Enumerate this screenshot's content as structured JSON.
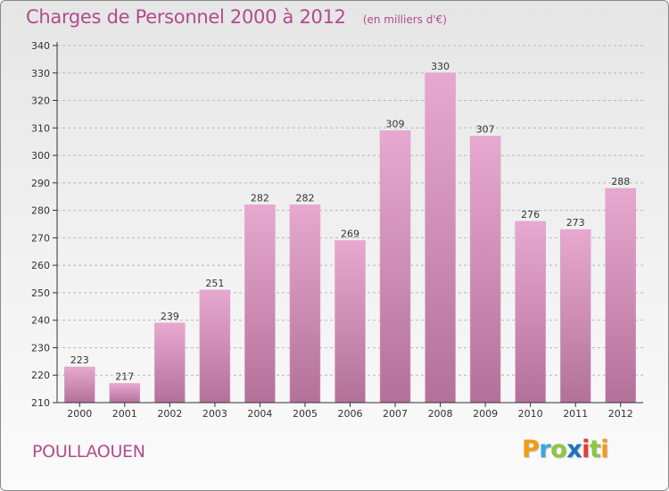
{
  "header": {
    "title": "Charges de Personnel 2000 à 2012",
    "subtitle": "(en milliers d'€)"
  },
  "footer": {
    "location": "POULLAOUEN",
    "logo_letters": [
      "P",
      "r",
      "o",
      "x",
      "i",
      "t",
      "i"
    ],
    "logo_colors": [
      "#f39c12",
      "#3aa6dd",
      "#8dc63f",
      "#1b75bc",
      "#e23a3a",
      "#8dc63f",
      "#f39c12"
    ]
  },
  "colors": {
    "bar_top": "#e7a9cf",
    "bar_bottom": "#b3719a",
    "text": "#b14c8a",
    "axis": "#333333"
  },
  "chart_data": {
    "type": "bar",
    "categories": [
      "2000",
      "2001",
      "2002",
      "2003",
      "2004",
      "2005",
      "2006",
      "2007",
      "2008",
      "2009",
      "2010",
      "2011",
      "2012"
    ],
    "values": [
      223,
      217,
      239,
      251,
      282,
      282,
      269,
      309,
      330,
      307,
      276,
      273,
      288
    ],
    "title": "Charges de Personnel 2000 à 2012",
    "subtitle": "(en milliers d'€)",
    "ylim": [
      210,
      340
    ],
    "yticks": [
      210,
      220,
      230,
      240,
      250,
      260,
      270,
      280,
      290,
      300,
      310,
      320,
      330,
      340
    ],
    "grid": true,
    "data_labels": true
  }
}
